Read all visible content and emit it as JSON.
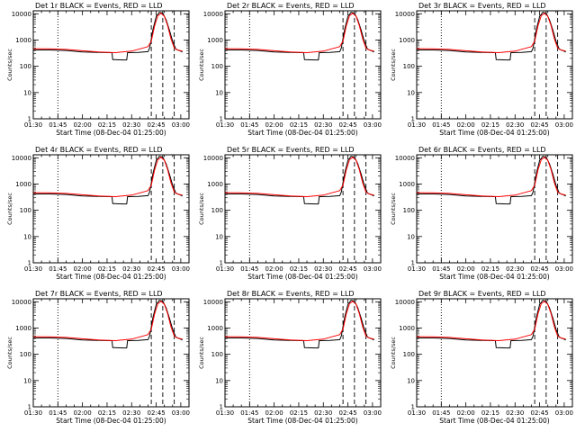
{
  "chart_data": {
    "type": "line",
    "x_ticks": [
      "01:30",
      "01:45",
      "02:00",
      "02:15",
      "02:30",
      "02:45",
      "03:00"
    ],
    "x_tick_values": [
      0,
      15,
      30,
      45,
      60,
      75,
      90
    ],
    "xlim": [
      0,
      95
    ],
    "xlabel": "Start Time (08-Dec-04 01:25:00)",
    "ylabel": "Counts/sec",
    "y_scale": "log",
    "ylim": [
      1,
      13000
    ],
    "y_ticks": [
      "1",
      "10",
      "100",
      "1000",
      "10000"
    ],
    "y_tick_values": [
      1,
      10,
      100,
      1000,
      10000
    ],
    "grid": false,
    "series_colors": {
      "events": "#000000",
      "lld": "#ff0000"
    },
    "vlines": [
      {
        "x": 15,
        "style": "dotted"
      },
      {
        "x": 72,
        "style": "dashed"
      },
      {
        "x": 79,
        "style": "dashed"
      },
      {
        "x": 86,
        "style": "dashed"
      }
    ],
    "events": {
      "x": [
        0,
        10,
        20,
        30,
        40,
        48,
        48.5,
        55,
        57,
        57.5,
        64,
        70,
        71,
        73,
        75,
        77,
        79,
        81,
        83,
        85,
        87,
        89,
        91
      ],
      "y": [
        420,
        420,
        400,
        350,
        340,
        330,
        180,
        175,
        175,
        330,
        340,
        360,
        500,
        2500,
        8000,
        11500,
        10500,
        6000,
        2500,
        900,
        450,
        400,
        350
      ]
    },
    "lld": {
      "x": [
        0,
        10,
        20,
        30,
        40,
        50,
        60,
        66,
        70,
        72,
        74,
        76,
        78,
        80,
        82,
        84,
        86,
        88,
        91
      ],
      "y": [
        470,
        460,
        440,
        390,
        350,
        330,
        380,
        480,
        560,
        900,
        3500,
        8500,
        10500,
        8000,
        3500,
        1100,
        500,
        420,
        380
      ]
    },
    "panels": [
      {
        "title": "Det 1r BLACK = Events, RED = LLD"
      },
      {
        "title": "Det 2r BLACK = Events, RED = LLD"
      },
      {
        "title": "Det 3r BLACK = Events, RED = LLD"
      },
      {
        "title": "Det 4r BLACK = Events, RED = LLD"
      },
      {
        "title": "Det 5r BLACK = Events, RED = LLD"
      },
      {
        "title": "Det 6r BLACK = Events, RED = LLD"
      },
      {
        "title": "Det 7r BLACK = Events, RED = LLD"
      },
      {
        "title": "Det 8r BLACK = Events, RED = LLD"
      },
      {
        "title": "Det 9r BLACK = Events, RED = LLD"
      }
    ]
  }
}
